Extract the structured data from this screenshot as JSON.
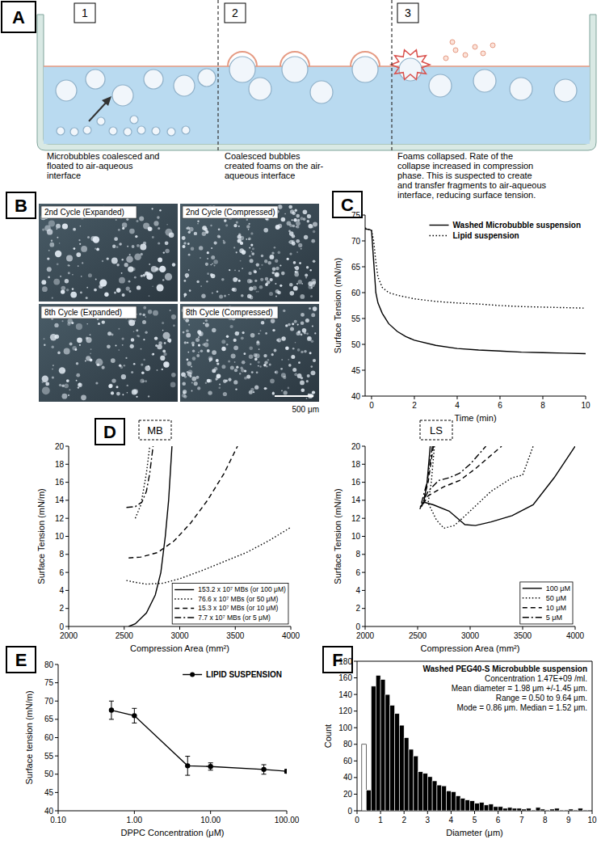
{
  "panel_labels": [
    "A",
    "B",
    "C",
    "D",
    "E",
    "F"
  ],
  "panel_a": {
    "steps": [
      {
        "number": "1",
        "caption": [
          "Microbubbles coalesced and",
          "floated to air-aqueous",
          "interface"
        ]
      },
      {
        "number": "2",
        "caption": [
          "Coalesced bubbles",
          "created foams on the air-",
          "aqueous interface"
        ]
      },
      {
        "number": "3",
        "caption": [
          "Foams collapsed. Rate of the",
          "collapse increased in compression",
          "phase. This is suspected to create",
          "and transfer fragments to air-aqueous",
          "interface, reducing surface tension."
        ]
      }
    ]
  },
  "panel_b": {
    "images": [
      "2nd Cycle (Expanded)",
      "2nd Cycle (Compressed)",
      "8th Cycle (Expanded)",
      "8th Cycle (Compressed)"
    ],
    "scale_bar": "500 μm"
  },
  "chart_data": [
    {
      "type": "line",
      "x_label": "Time (min)",
      "y_label": "Surface Tension (mN/m)",
      "xlim": [
        -0.3,
        10
      ],
      "xticks": [
        0,
        2,
        4,
        6,
        8,
        10
      ],
      "ylim": [
        40,
        75
      ],
      "yticks": [
        40,
        45,
        50,
        55,
        60,
        65,
        70,
        75
      ],
      "legend": "top-right",
      "series": [
        {
          "name": "Washed Microbubble suspension",
          "color": "#000000",
          "line_style": "solid",
          "x": [
            -0.3,
            -0.1,
            0,
            0.1,
            0.2,
            0.3,
            0.5,
            0.8,
            1.2,
            1.6,
            2,
            3,
            4,
            5,
            6,
            7,
            8,
            9,
            10
          ],
          "values": [
            72.3,
            72.2,
            72,
            66,
            60,
            58,
            56,
            54,
            52.5,
            51.5,
            50.8,
            49.8,
            49.2,
            48.9,
            48.7,
            48.5,
            48.4,
            48.3,
            48.2
          ]
        },
        {
          "name": "Lipid suspension",
          "color": "#000000",
          "line_style": "dotted",
          "x": [
            -0.3,
            0,
            0.1,
            0.2,
            0.3,
            0.5,
            0.8,
            1.2,
            2,
            3,
            4,
            5,
            6,
            7,
            8,
            9,
            10
          ],
          "values": [
            72.5,
            72,
            70,
            66,
            63,
            61,
            60,
            59.5,
            58.8,
            58.3,
            58,
            57.8,
            57.5,
            57.3,
            57.2,
            57.1,
            57
          ]
        }
      ]
    },
    {
      "type": "line",
      "title": "MB",
      "x_label": "Compression Area (mm²)",
      "y_label": "Surface Tension (mN/m)",
      "xlim": [
        2000,
        4000
      ],
      "xticks": [
        2000,
        2500,
        3000,
        3500,
        4000
      ],
      "ylim": [
        0,
        20
      ],
      "yticks": [
        0,
        2,
        4,
        6,
        8,
        10,
        12,
        14,
        16,
        18,
        20
      ],
      "legend": "bottom-right",
      "series": [
        {
          "name": "153.2 x 10⁷ MBs (or 100 μM)",
          "color": "#000000",
          "line_style": "solid",
          "x": [
            2540,
            2600,
            2700,
            2780,
            2830,
            2870,
            2900,
            2930
          ],
          "values": [
            0,
            0.3,
            1.5,
            3.5,
            6,
            10,
            14,
            20
          ]
        },
        {
          "name": "76.6 x 10⁷ MBs (or 50 μM)",
          "color": "#000000",
          "line_style": "dotted",
          "x": [
            2520,
            2600,
            2700,
            2850,
            3000,
            3200,
            3400,
            3600,
            3800,
            4000,
            null,
            2600,
            2650,
            2700,
            2730
          ],
          "values": [
            5.1,
            4.9,
            4.7,
            4.8,
            5.3,
            6.2,
            7.2,
            8.2,
            9.5,
            11,
            null,
            12,
            13.5,
            17,
            20
          ]
        },
        {
          "name": "15.3 x 10⁷ MBs (or 10 μM)",
          "color": "#000000",
          "line_style": "dashed",
          "x": [
            2540,
            2650,
            2800,
            2950,
            3100,
            3250,
            3400,
            3520
          ],
          "values": [
            7.6,
            7.7,
            8.2,
            9.5,
            11.5,
            14,
            17,
            20
          ]
        },
        {
          "name": "7.7 x 10⁷ MBs (or 5 μM)",
          "color": "#000000",
          "line_style": "dashdot",
          "x": [
            2520,
            2600,
            2660,
            2700,
            2730,
            2760
          ],
          "values": [
            13.2,
            13.3,
            13.8,
            15,
            17,
            20
          ]
        }
      ]
    },
    {
      "type": "line",
      "title": "LS",
      "x_label": "Compression Area (mm²)",
      "y_label": "Surface Tension (mN/m)",
      "xlim": [
        2000,
        4000
      ],
      "xticks": [
        2000,
        2500,
        3000,
        3500,
        4000
      ],
      "ylim": [
        0,
        20
      ],
      "yticks": [
        0,
        2,
        4,
        6,
        8,
        10,
        12,
        14,
        16,
        18,
        20
      ],
      "legend": "bottom-right",
      "series": [
        {
          "name": "100 μM",
          "color": "#000000",
          "line_style": "solid",
          "x": [
            2620,
            2590,
            2560,
            2650,
            2800,
            2950,
            3050,
            3200,
            3400,
            3600,
            3800,
            4000
          ],
          "values": [
            20,
            16,
            13.8,
            13.5,
            12.8,
            11.3,
            11.2,
            11.6,
            12.3,
            13.5,
            16.5,
            20
          ]
        },
        {
          "name": "50 μM",
          "color": "#000000",
          "line_style": "dotted",
          "x": [
            2660,
            2630,
            2600,
            2680,
            2750,
            2850,
            3000,
            3200,
            3400,
            3500,
            3600
          ],
          "values": [
            20,
            16,
            13.7,
            11.8,
            10.9,
            11.2,
            12.8,
            15,
            16.5,
            16.8,
            20
          ]
        },
        {
          "name": "10 μM",
          "color": "#000000",
          "line_style": "dashed",
          "x": [
            2650,
            2600,
            2540,
            2600,
            2750,
            2900,
            3050,
            3200,
            3300
          ],
          "values": [
            20,
            16,
            13.3,
            14.5,
            15.5,
            16.2,
            17.5,
            19,
            20
          ]
        },
        {
          "name": "5 μM",
          "color": "#000000",
          "line_style": "dashdot",
          "x": [
            2640,
            2590,
            2520,
            2600,
            2700,
            2800,
            2900,
            3000,
            3150
          ],
          "values": [
            20,
            16,
            13,
            15,
            16.2,
            16.5,
            17,
            18,
            20
          ]
        }
      ]
    },
    {
      "type": "line",
      "log": "x",
      "x_label": "DPPC Concentration (μM)",
      "y_label": "Surface tension (mN/m)",
      "xlim": [
        0.1,
        100
      ],
      "xticks": [
        {
          "value": 0.1,
          "label": "0.10"
        },
        {
          "value": 1,
          "label": "1.00"
        },
        {
          "value": 10,
          "label": "10.00"
        },
        {
          "value": 100,
          "label": "100.00"
        }
      ],
      "ylim": [
        40,
        80
      ],
      "yticks": [
        40,
        45,
        50,
        55,
        60,
        65,
        70,
        75,
        80
      ],
      "legend": "top-right",
      "series": [
        {
          "name": "LIPID SUSPENSION",
          "color": "#000000",
          "line_style": "solid",
          "marker": "circle",
          "x": [
            0.5,
            1,
            5,
            10,
            50,
            100
          ],
          "values": [
            67.5,
            66,
            52.3,
            52.1,
            51.3,
            50.8
          ],
          "errors": [
            2.5,
            2,
            2.6,
            1,
            1.3,
            0.5
          ]
        }
      ]
    },
    {
      "type": "histogram",
      "x_label": "Diameter (μm)",
      "y_label": "Count",
      "xlim": [
        0,
        10
      ],
      "xticks": [
        0,
        1,
        2,
        3,
        4,
        5,
        6,
        7,
        8,
        9,
        10
      ],
      "ylim": [
        0,
        180
      ],
      "yticks": [
        0,
        20,
        40,
        60,
        80,
        100,
        120,
        140,
        160,
        180
      ],
      "bins": [
        0.2,
        0.4,
        0.6,
        0.8,
        1.0,
        1.2,
        1.4,
        1.6,
        1.8,
        2.0,
        2.2,
        2.4,
        2.6,
        2.8,
        3.0,
        3.2,
        3.4,
        3.6,
        3.8,
        4.0,
        4.2,
        4.4,
        4.6,
        4.8,
        5.0,
        5.2,
        5.4,
        5.6,
        5.8,
        6.0,
        6.2,
        6.4,
        6.6,
        6.8,
        7.0,
        7.2,
        7.4,
        7.6,
        7.8,
        8.0,
        8.2,
        8.4,
        8.6,
        8.8,
        9.0,
        9.2,
        9.4,
        9.6,
        9.8,
        10.0
      ],
      "values": [
        80,
        25,
        150,
        163,
        158,
        140,
        127,
        117,
        103,
        88,
        74,
        66,
        47,
        45,
        41,
        36,
        31,
        30,
        24,
        23,
        18,
        15,
        13,
        12,
        9,
        10,
        7,
        8,
        5,
        5,
        3,
        4,
        3,
        3,
        2,
        3,
        1,
        4,
        2,
        1,
        2,
        3,
        1,
        1,
        2,
        1,
        3,
        1,
        0
      ],
      "colors": [
        "#ffffff",
        "#000000",
        "#000000",
        "#000000",
        "#000000",
        "#000000",
        "#000000",
        "#000000",
        "#000000",
        "#000000",
        "#000000",
        "#000000",
        "#000000",
        "#000000",
        "#000000",
        "#000000",
        "#000000",
        "#000000",
        "#000000",
        "#000000",
        "#000000",
        "#000000",
        "#000000",
        "#000000",
        "#000000",
        "#000000",
        "#000000",
        "#000000",
        "#000000",
        "#000000",
        "#000000",
        "#000000",
        "#000000",
        "#000000",
        "#000000",
        "#000000",
        "#000000",
        "#000000",
        "#000000",
        "#000000",
        "#000000",
        "#000000",
        "#000000",
        "#000000",
        "#000000",
        "#000000",
        "#000000",
        "#000000",
        "#000000"
      ],
      "annotations": [
        "Washed PEG40-S Microbubble suspension",
        "Concentration 1.47E+09 /ml.",
        "Mean diameter = 1.98 μm +/-1.45 μm.",
        "Range = 0.50 to 9.64 μm.",
        "Mode = 0.86 μm. Median = 1.52 μm."
      ]
    }
  ]
}
